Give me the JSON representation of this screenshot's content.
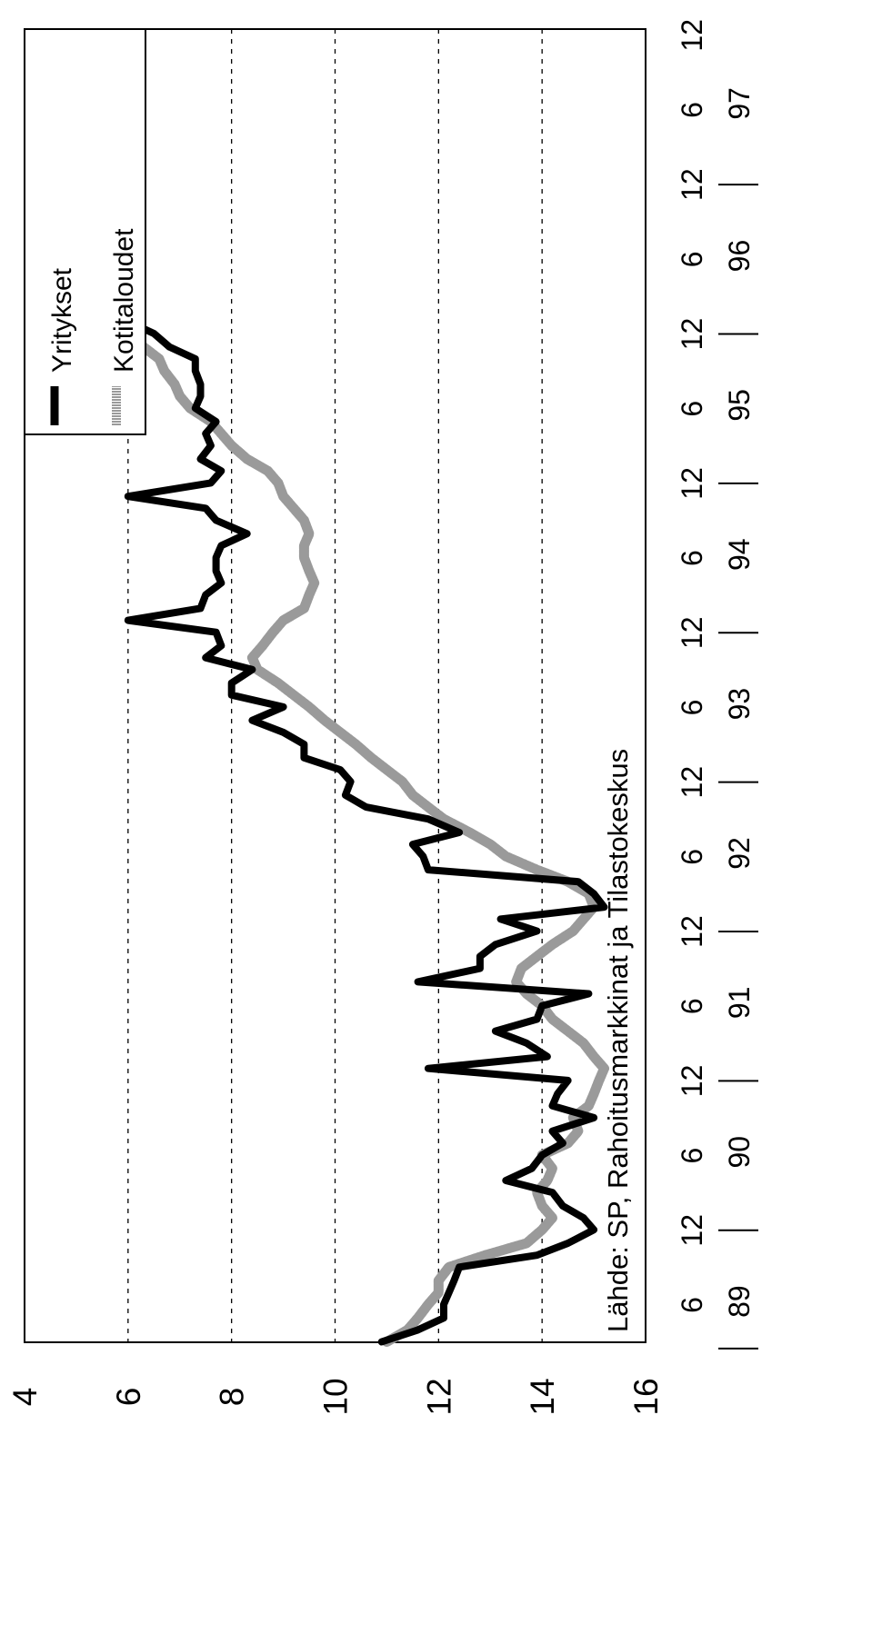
{
  "chart_data": {
    "type": "line",
    "title": "",
    "xlabel": "",
    "ylabel": "",
    "ylim": [
      4,
      16
    ],
    "yticks": [
      4,
      6,
      8,
      10,
      12,
      14,
      16
    ],
    "grid": "dashed horizontal at 6, 8, 10, 12, 14",
    "x_month_ticks": [
      "6",
      "12",
      "6",
      "12",
      "6",
      "12",
      "6",
      "12",
      "6",
      "12",
      "6",
      "12",
      "6",
      "12",
      "6",
      "12",
      "6",
      "12"
    ],
    "x_year_labels": [
      "89",
      "90",
      "91",
      "92",
      "93",
      "94",
      "95",
      "96",
      "97"
    ],
    "xlim": [
      1989.167,
      1997.958
    ],
    "legend_position": "top-left",
    "source_note": "Lähde: SP, Rahoitusmarkkinat ja Tilastokeskus",
    "series": [
      {
        "name": "Yritykset",
        "color": "#000000",
        "x": [
          1989.17,
          1989.25,
          1989.33,
          1989.42,
          1989.5,
          1989.58,
          1989.67,
          1989.75,
          1989.83,
          1989.92,
          1990.0,
          1990.08,
          1990.17,
          1990.25,
          1990.33,
          1990.42,
          1990.5,
          1990.58,
          1990.67,
          1990.75,
          1990.83,
          1990.92,
          1991.0,
          1991.08,
          1991.17,
          1991.25,
          1991.33,
          1991.42,
          1991.5,
          1991.58,
          1991.67,
          1991.75,
          1991.83,
          1991.92,
          1992.0,
          1992.08,
          1992.17,
          1992.25,
          1992.33,
          1992.42,
          1992.5,
          1992.58,
          1992.67,
          1992.75,
          1992.83,
          1992.92,
          1993.0,
          1993.08,
          1993.17,
          1993.25,
          1993.33,
          1993.42,
          1993.5,
          1993.58,
          1993.67,
          1993.75,
          1993.83,
          1993.92,
          1994.0,
          1994.08,
          1994.17,
          1994.25,
          1994.33,
          1994.42,
          1994.5,
          1994.58,
          1994.67,
          1994.75,
          1994.83,
          1994.92,
          1995.0,
          1995.08,
          1995.17,
          1995.25,
          1995.33,
          1995.42,
          1995.5,
          1995.58,
          1995.67,
          1995.75,
          1995.83,
          1995.92,
          1996.0,
          1996.08,
          1996.17,
          1996.25,
          1996.33,
          1996.42,
          1996.5,
          1996.58,
          1996.67,
          1996.75,
          1996.83,
          1996.92,
          1997.0,
          1997.08,
          1997.17,
          1997.25,
          1997.33,
          1997.42,
          1997.5,
          1997.58,
          1997.67,
          1997.75,
          1997.83,
          1997.92
        ],
        "values": [
          10.9,
          11.6,
          12.1,
          12.1,
          12.2,
          12.3,
          12.4,
          13.9,
          14.5,
          15.0,
          14.8,
          14.4,
          14.2,
          13.3,
          13.8,
          14.0,
          14.4,
          14.2,
          15.0,
          14.2,
          14.3,
          14.5,
          11.8,
          14.1,
          13.7,
          13.1,
          13.9,
          14.0,
          14.9,
          11.6,
          12.8,
          12.8,
          13.1,
          13.9,
          13.2,
          15.2,
          15.0,
          14.7,
          11.8,
          11.7,
          11.5,
          12.4,
          11.8,
          10.6,
          10.2,
          10.3,
          10.1,
          9.4,
          9.4,
          9.0,
          8.4,
          9.0,
          8.0,
          8.0,
          8.4,
          7.5,
          7.8,
          7.7,
          6.0,
          7.4,
          7.5,
          7.8,
          7.7,
          7.7,
          7.8,
          8.3,
          7.7,
          7.5,
          6.0,
          7.6,
          7.8,
          7.4,
          7.6,
          7.5,
          7.7,
          7.3,
          7.4,
          7.4,
          7.3,
          7.3,
          6.8,
          6.5,
          6.0,
          5.9,
          5.9,
          5.8,
          5.5,
          5.6,
          5.4,
          5.5,
          5.0,
          4.6,
          4.7,
          4.7,
          4.3,
          4.9,
          4.5,
          4.7,
          4.5,
          4.6,
          4.5,
          4.1,
          4.6,
          4.8,
          4.4,
          4.6
        ]
      },
      {
        "name": "Kotitaloudet",
        "color": "#9a9a9a",
        "x": [
          1989.17,
          1989.25,
          1989.33,
          1989.42,
          1989.5,
          1989.58,
          1989.67,
          1989.75,
          1989.83,
          1989.92,
          1990.0,
          1990.08,
          1990.17,
          1990.25,
          1990.33,
          1990.42,
          1990.5,
          1990.58,
          1990.67,
          1990.75,
          1990.83,
          1990.92,
          1991.0,
          1991.08,
          1991.17,
          1991.25,
          1991.33,
          1991.42,
          1991.5,
          1991.58,
          1991.67,
          1991.75,
          1991.83,
          1991.92,
          1992.0,
          1992.08,
          1992.17,
          1992.25,
          1992.33,
          1992.42,
          1992.5,
          1992.58,
          1992.67,
          1992.75,
          1992.83,
          1992.92,
          1993.0,
          1993.08,
          1993.17,
          1993.25,
          1993.33,
          1993.42,
          1993.5,
          1993.58,
          1993.67,
          1993.75,
          1993.83,
          1993.92,
          1994.0,
          1994.08,
          1994.17,
          1994.25,
          1994.33,
          1994.42,
          1994.5,
          1994.58,
          1994.67,
          1994.75,
          1994.83,
          1994.92,
          1995.0,
          1995.08,
          1995.17,
          1995.25,
          1995.33,
          1995.42,
          1995.5,
          1995.58,
          1995.67,
          1995.75,
          1995.83,
          1995.92,
          1996.0,
          1996.08,
          1996.17,
          1996.25,
          1996.33,
          1996.42,
          1996.5,
          1996.58,
          1996.67,
          1996.75,
          1996.83,
          1996.92,
          1997.0,
          1997.08,
          1997.17,
          1997.25,
          1997.33,
          1997.42,
          1997.5,
          1997.58,
          1997.67,
          1997.75,
          1997.83,
          1997.92
        ],
        "values": [
          11.0,
          11.4,
          11.6,
          11.8,
          12.0,
          12.0,
          12.2,
          12.9,
          13.7,
          14.0,
          14.2,
          14.0,
          13.9,
          14.1,
          14.2,
          14.0,
          14.5,
          14.7,
          14.6,
          14.9,
          15.0,
          15.1,
          15.2,
          15.0,
          14.8,
          14.5,
          14.2,
          14.0,
          13.7,
          13.5,
          13.6,
          13.9,
          14.2,
          14.6,
          14.8,
          15.0,
          14.9,
          14.5,
          13.9,
          13.3,
          13.0,
          12.6,
          12.1,
          11.8,
          11.5,
          11.3,
          11.0,
          10.7,
          10.4,
          10.1,
          9.8,
          9.5,
          9.2,
          8.9,
          8.5,
          8.4,
          8.6,
          8.8,
          9.0,
          9.4,
          9.5,
          9.6,
          9.5,
          9.4,
          9.4,
          9.5,
          9.4,
          9.2,
          9.0,
          8.9,
          8.7,
          8.3,
          8.0,
          7.8,
          7.6,
          7.2,
          7.0,
          6.9,
          6.7,
          6.6,
          6.3,
          6.0,
          5.8,
          5.6,
          5.4,
          5.3,
          5.2,
          5.2,
          5.1,
          5.0,
          5.0,
          5.1,
          5.0,
          4.9,
          4.8,
          4.8,
          4.7,
          4.6,
          4.7,
          4.5,
          4.5,
          4.6,
          4.5,
          4.4,
          4.3,
          4.2
        ]
      }
    ]
  }
}
